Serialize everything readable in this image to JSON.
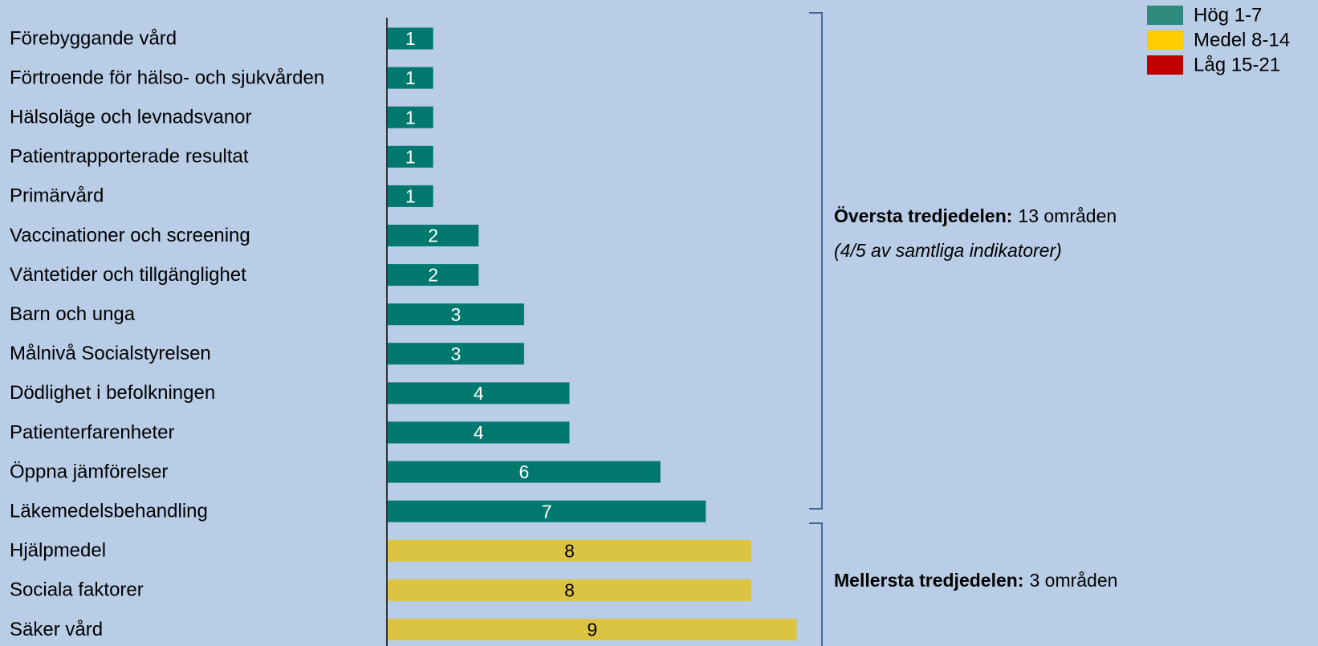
{
  "chart_data": {
    "type": "bar",
    "orientation": "horizontal",
    "categories": [
      "Förebyggande vård",
      "Förtroende för hälso- och sjukvården",
      "Hälsoläge och levnadsvanor",
      "Patientrapporterade resultat",
      "Primärvård",
      "Vaccinationer och screening",
      "Väntetider och tillgänglighet",
      "Barn och unga",
      "Målnivå Socialstyrelsen",
      "Dödlighet i befolkningen",
      "Patienterfarenheter",
      "Öppna jämförelser",
      "Läkemedelsbehandling",
      "Hjälpmedel",
      "Sociala faktorer",
      "Säker vård"
    ],
    "values": [
      1,
      1,
      1,
      1,
      1,
      2,
      2,
      3,
      3,
      4,
      4,
      6,
      7,
      8,
      8,
      9
    ],
    "colors": [
      "#00786e",
      "#00786e",
      "#00786e",
      "#00786e",
      "#00786e",
      "#00786e",
      "#00786e",
      "#00786e",
      "#00786e",
      "#00786e",
      "#00786e",
      "#00786e",
      "#00786e",
      "#dcc443",
      "#dcc443",
      "#dcc443"
    ],
    "label_colors": [
      "#ffffff",
      "#ffffff",
      "#ffffff",
      "#ffffff",
      "#ffffff",
      "#ffffff",
      "#ffffff",
      "#ffffff",
      "#ffffff",
      "#ffffff",
      "#ffffff",
      "#ffffff",
      "#ffffff",
      "#000000",
      "#000000",
      "#000000"
    ],
    "xlim": [
      0,
      21
    ],
    "legend": {
      "position": "upper right",
      "entries": [
        {
          "name": "Hög 1-7",
          "color": "#2f8a7e"
        },
        {
          "name": "Medel 8-14",
          "color": "#ffcc00"
        },
        {
          "name": "Låg 15-21",
          "color": "#c00000"
        }
      ]
    },
    "annotations": [
      {
        "bold": "Översta tredjedelen:",
        "text": "13 områden",
        "note": "(4/5 av samtliga indikatorer)"
      },
      {
        "bold": "Mellersta tredjedelen:",
        "text": "3 områden"
      }
    ]
  }
}
